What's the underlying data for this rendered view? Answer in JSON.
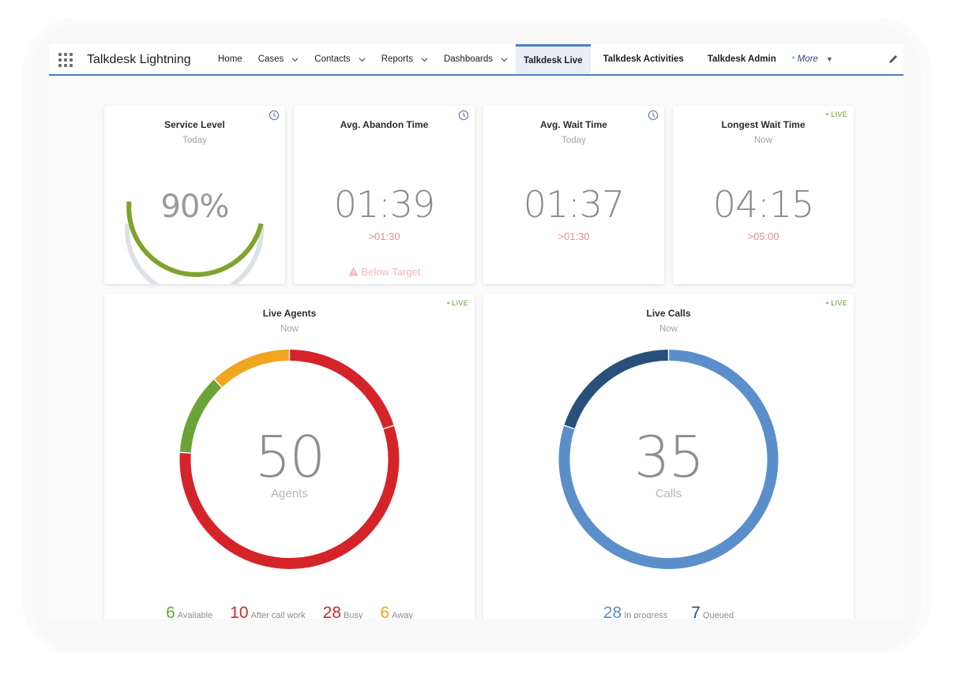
{
  "app": {
    "name": "Talkdesk Lightning"
  },
  "nav": {
    "items": [
      {
        "label": "Home",
        "dropdown": false
      },
      {
        "label": "Cases",
        "dropdown": true
      },
      {
        "label": "Contacts",
        "dropdown": true
      },
      {
        "label": "Reports",
        "dropdown": true
      },
      {
        "label": "Dashboards",
        "dropdown": true
      },
      {
        "label": "Talkdesk Live",
        "active": true
      },
      {
        "label": "Talkdesk Activities"
      },
      {
        "label": "Talkdesk Admin"
      }
    ],
    "more_label": "More",
    "more_marker": "*"
  },
  "cards": {
    "service_level": {
      "title": "Service Level",
      "sub": "Today",
      "value": "90%",
      "level": 0.9,
      "icon": "clock-icon"
    },
    "avg_abandon": {
      "title": "Avg. Abandon Time",
      "value": "01:39",
      "target": ">01:30",
      "status": "Below Target",
      "icon": "clock-icon"
    },
    "avg_wait": {
      "title": "Avg. Wait Time",
      "sub": "Today",
      "value": "01:37",
      "target": ">01:30",
      "icon": "clock-icon"
    },
    "longest_wait": {
      "title": "Longest Wait Time",
      "sub": "Now",
      "value": "04:15",
      "target": ">05:00",
      "badge": "• LIVE"
    }
  },
  "live_agents": {
    "title": "Live Agents",
    "sub": "Now",
    "badge": "• LIVE",
    "total": "50",
    "total_label": "Agents",
    "segments": [
      {
        "label": "Available",
        "value": 6,
        "color": "#6aa439"
      },
      {
        "label": "After call work",
        "value": 10,
        "color": "#d4242a"
      },
      {
        "label": "Busy",
        "value": 28,
        "color": "#d4242a"
      },
      {
        "label": "Away",
        "value": 6,
        "color": "#f2a51f"
      }
    ]
  },
  "live_calls": {
    "title": "Live Calls",
    "sub": "Now",
    "badge": "• LIVE",
    "total": "35",
    "total_label": "Calls",
    "segments": [
      {
        "label": "In progress",
        "value": 28,
        "color": "#5b8fcc"
      },
      {
        "label": "Queued",
        "value": 7,
        "color": "#28507a"
      }
    ]
  },
  "colors": {
    "accent": "#4a7fc9",
    "gauge_fill": "#7ea32c",
    "gauge_track": "#dbe1e6",
    "target_red": "#ef8a8a",
    "live_green": "#5aa02c"
  }
}
